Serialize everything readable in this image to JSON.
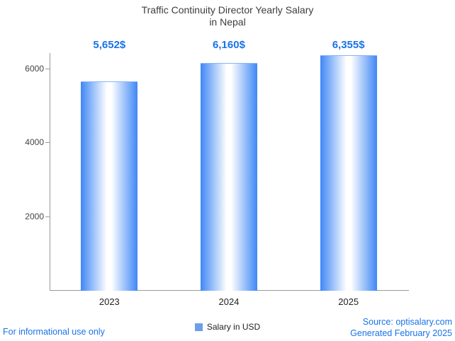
{
  "title": {
    "line1": "Traffic Continuity Director Yearly Salary",
    "line2": "in Nepal"
  },
  "chart_data": {
    "type": "bar",
    "title": "Traffic Continuity Director Yearly Salary in Nepal",
    "categories": [
      "2023",
      "2024",
      "2025"
    ],
    "values": [
      5652,
      6160,
      6355
    ],
    "value_labels": [
      "5,652$",
      "6,160$",
      "6,355$"
    ],
    "series_name": "Salary in USD",
    "xlabel": "",
    "ylabel": "",
    "ylim": [
      0,
      6430
    ],
    "yticks": [
      2000,
      4000,
      6000
    ],
    "grid": false,
    "legend_position": "bottom",
    "legend": {
      "label": "Salary in USD",
      "color": "#6d9eeb"
    },
    "bar_edge_color": "#3f87f5",
    "bar_center_color": "#ffffff"
  },
  "footer": {
    "left": "For informational use only",
    "source": "Source: optisalary.com",
    "generated": "Generated February 2025"
  },
  "colors": {
    "accent_blue": "#1a73e8",
    "title_text": "#3d3d3d",
    "axis": "#9a9a9a"
  }
}
